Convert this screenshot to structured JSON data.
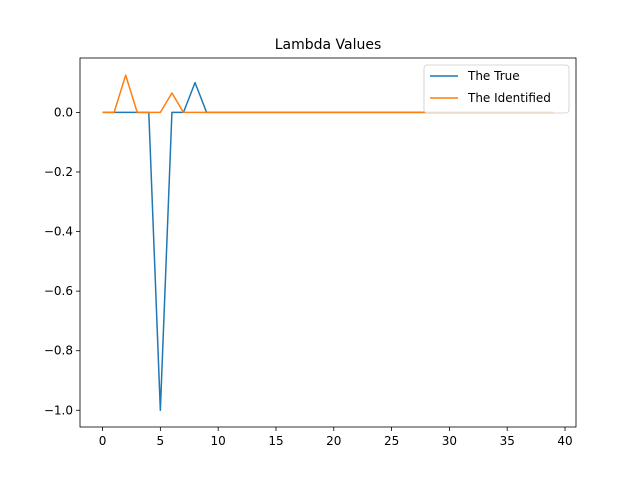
{
  "chart_data": {
    "type": "line",
    "title": "Lambda Values",
    "xlabel": "",
    "ylabel": "",
    "xlim": [
      -1.95,
      40.95
    ],
    "ylim": [
      -1.0561,
      0.1826
    ],
    "xticks": [
      0,
      5,
      10,
      15,
      20,
      25,
      30,
      35,
      40
    ],
    "xtick_labels": [
      "0",
      "5",
      "10",
      "15",
      "20",
      "25",
      "30",
      "35",
      "40"
    ],
    "yticks": [
      0.0,
      -0.2,
      -0.4,
      -0.6,
      -0.8,
      -1.0
    ],
    "ytick_labels": [
      "0.0",
      "−0.2",
      "−0.4",
      "−0.6",
      "−0.8",
      "−1.0"
    ],
    "grid": false,
    "legend": "top-right",
    "x": [
      0,
      1,
      2,
      3,
      4,
      5,
      6,
      7,
      8,
      9,
      10,
      11,
      12,
      13,
      14,
      15,
      16,
      17,
      18,
      19,
      20,
      21,
      22,
      23,
      24,
      25,
      26,
      27,
      28,
      29,
      30,
      31,
      32,
      33,
      34,
      35,
      36,
      37,
      38,
      39
    ],
    "series": [
      {
        "name": "The True",
        "color": "#1f77b4",
        "values": [
          0,
          0,
          0,
          0,
          0,
          -1.0,
          0,
          0,
          0.1,
          0,
          0,
          0,
          0,
          0,
          0,
          0,
          0,
          0,
          0,
          0,
          0,
          0,
          0,
          0,
          0,
          0,
          0,
          0,
          0,
          0,
          0,
          0,
          0,
          0,
          0,
          0,
          0,
          0,
          0,
          0
        ]
      },
      {
        "name": "The Identified",
        "color": "#ff7f0e",
        "values": [
          0,
          0,
          0.125,
          0,
          0,
          0,
          0.065,
          0,
          0,
          0,
          0,
          0,
          0,
          0,
          0,
          0,
          0,
          0,
          0,
          0,
          0,
          0,
          0,
          0,
          0,
          0,
          0,
          0,
          0,
          0,
          0,
          0,
          0,
          0,
          0,
          0,
          0,
          0,
          0,
          0
        ]
      }
    ]
  }
}
